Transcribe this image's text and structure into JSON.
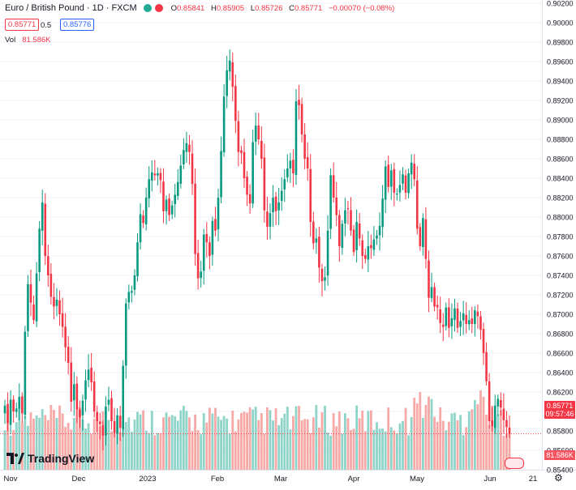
{
  "header": {
    "title": "Euro / British Pound · 1D · FXCM",
    "ohlc": [
      {
        "label": "O",
        "value": "0.85841"
      },
      {
        "label": "H",
        "value": "0.85905"
      },
      {
        "label": "L",
        "value": "0.85726"
      },
      {
        "label": "C",
        "value": "0.85771"
      }
    ],
    "change": "−0.00070 (−0.08%)",
    "status_colors": [
      "#22ab94",
      "#f23645"
    ]
  },
  "trade": {
    "sell": "0.85771",
    "spread": "0.5",
    "buy": "0.85776"
  },
  "volume_legend": {
    "label": "Vol",
    "value": "81.586K"
  },
  "price_axis": {
    "ticks": [
      "0.90200",
      "0.90000",
      "0.89800",
      "0.89600",
      "0.89400",
      "0.89200",
      "0.89000",
      "0.88800",
      "0.88600",
      "0.88400",
      "0.88200",
      "0.88000",
      "0.87800",
      "0.87600",
      "0.87400",
      "0.87200",
      "0.87000",
      "0.86800",
      "0.86600",
      "0.86400",
      "0.86200",
      "0.86000",
      "0.85800",
      "0.85600",
      "0.85400"
    ],
    "last_price": "0.85771",
    "countdown": "09:57:46",
    "volume_tag": "81.586K"
  },
  "time_axis": {
    "labels": [
      "Nov",
      "Dec",
      "2023",
      "Feb",
      "Mar",
      "Apr",
      "May",
      "Jun",
      "21"
    ]
  },
  "branding": {
    "logo_text": "TradingView",
    "logo_icon": "tradingview-icon",
    "settings_icon": "gear-icon"
  },
  "colors": {
    "up": "#089981",
    "down": "#f23645",
    "vol_up": "#8fd4c9",
    "vol_down": "#f7a9a7"
  },
  "chart_data": {
    "type": "candlestick",
    "title": "Euro / British Pound",
    "interval": "1D",
    "exchange": "FXCM",
    "ylim": [
      0.8525,
      0.9025
    ],
    "x_labels": [
      "Nov",
      "Dec",
      "2023",
      "Feb",
      "Mar",
      "Apr",
      "May",
      "Jun",
      "21"
    ],
    "close": [
      0.8606,
      0.8588,
      0.8612,
      0.86,
      0.8603,
      0.8615,
      0.8598,
      0.8682,
      0.8731,
      0.8712,
      0.8694,
      0.8742,
      0.8788,
      0.8815,
      0.876,
      0.874,
      0.8718,
      0.8708,
      0.8715,
      0.87,
      0.8687,
      0.8666,
      0.865,
      0.861,
      0.8628,
      0.8602,
      0.8594,
      0.8611,
      0.8632,
      0.8643,
      0.863,
      0.86,
      0.859,
      0.8587,
      0.8575,
      0.8605,
      0.8612,
      0.859,
      0.8578,
      0.8596,
      0.8583,
      0.8647,
      0.8711,
      0.8723,
      0.8724,
      0.874,
      0.8774,
      0.8803,
      0.8794,
      0.882,
      0.8839,
      0.8846,
      0.8843,
      0.8845,
      0.8838,
      0.8806,
      0.8818,
      0.8802,
      0.8812,
      0.8823,
      0.8836,
      0.8853,
      0.8869,
      0.8876,
      0.8867,
      0.8834,
      0.8762,
      0.8737,
      0.8744,
      0.8782,
      0.8774,
      0.876,
      0.8796,
      0.8786,
      0.882,
      0.8868,
      0.8924,
      0.8951,
      0.8961,
      0.8934,
      0.8899,
      0.8867,
      0.8866,
      0.884,
      0.8823,
      0.8814,
      0.8877,
      0.8894,
      0.888,
      0.886,
      0.8807,
      0.879,
      0.8804,
      0.882,
      0.8806,
      0.8815,
      0.8827,
      0.8839,
      0.885,
      0.8858,
      0.8845,
      0.8919,
      0.8915,
      0.8885,
      0.886,
      0.885,
      0.8795,
      0.8773,
      0.8778,
      0.8748,
      0.8734,
      0.8738,
      0.8786,
      0.8843,
      0.882,
      0.8802,
      0.877,
      0.8793,
      0.8807,
      0.8808,
      0.8786,
      0.8764,
      0.8795,
      0.8778,
      0.876,
      0.8757,
      0.877,
      0.8768,
      0.8777,
      0.8781,
      0.8791,
      0.8819,
      0.8852,
      0.8831,
      0.8848,
      0.8825,
      0.8824,
      0.8833,
      0.8844,
      0.8825,
      0.8845,
      0.8856,
      0.8839,
      0.8788,
      0.877,
      0.8799,
      0.8757,
      0.8717,
      0.8728,
      0.8708,
      0.8707,
      0.8691,
      0.8687,
      0.8707,
      0.8686,
      0.8696,
      0.8706,
      0.8686,
      0.8693,
      0.8701,
      0.869,
      0.8694,
      0.869,
      0.8704,
      0.8698,
      0.8684,
      0.866,
      0.8631,
      0.859,
      0.8585,
      0.8606,
      0.8613,
      0.8604,
      0.8591,
      0.8584,
      0.8577
    ],
    "bull_bear_volume_series": [
      "up",
      "down"
    ],
    "volume": {
      "last": "81.586K"
    }
  }
}
